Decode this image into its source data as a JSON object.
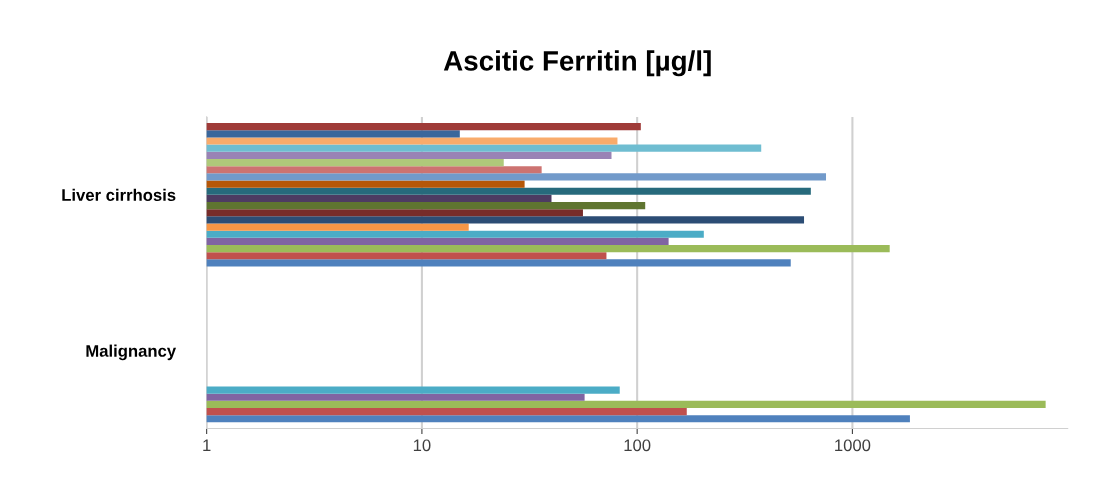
{
  "chart_data": {
    "type": "bar",
    "orientation": "horizontal",
    "title": "Ascitic Ferritin [µg/l]",
    "categories": [
      "Liver cirrhosis",
      "Malignancy"
    ],
    "series": [
      {
        "color": "#4f81bd",
        "values": [
          517,
          1850
        ]
      },
      {
        "color": "#c0504d",
        "values": [
          72,
          170
        ]
      },
      {
        "color": "#9bbb59",
        "values": [
          1490,
          7900
        ]
      },
      {
        "color": "#8064a2",
        "values": [
          140,
          57
        ]
      },
      {
        "color": "#4bacc6",
        "values": [
          204,
          83
        ]
      },
      {
        "color": "#f79646",
        "values": [
          16.5,
          null
        ]
      },
      {
        "color": "#2c4d75",
        "values": [
          596,
          null
        ]
      },
      {
        "color": "#772c2a",
        "values": [
          56,
          null
        ]
      },
      {
        "color": "#5f7530",
        "values": [
          109,
          null
        ]
      },
      {
        "color": "#4d3b62",
        "values": [
          40,
          null
        ]
      },
      {
        "color": "#276a7c",
        "values": [
          641,
          null
        ]
      },
      {
        "color": "#b65708",
        "values": [
          30,
          null
        ]
      },
      {
        "color": "#729aca",
        "values": [
          754,
          null
        ]
      },
      {
        "color": "#cd7371",
        "values": [
          36,
          null
        ]
      },
      {
        "color": "#afc97a",
        "values": [
          24,
          null
        ]
      },
      {
        "color": "#9983b5",
        "values": [
          76,
          null
        ]
      },
      {
        "color": "#6fbdd1",
        "values": [
          377,
          null
        ]
      },
      {
        "color": "#f9ab6b",
        "values": [
          81,
          null
        ]
      },
      {
        "color": "#3a679c",
        "values": [
          15,
          null
        ]
      },
      {
        "color": "#9f3b38",
        "values": [
          104,
          null
        ]
      }
    ],
    "log": "x",
    "xlim": [
      1,
      10000
    ],
    "xticks": [
      1,
      10,
      100,
      1000
    ],
    "grid": "x"
  }
}
